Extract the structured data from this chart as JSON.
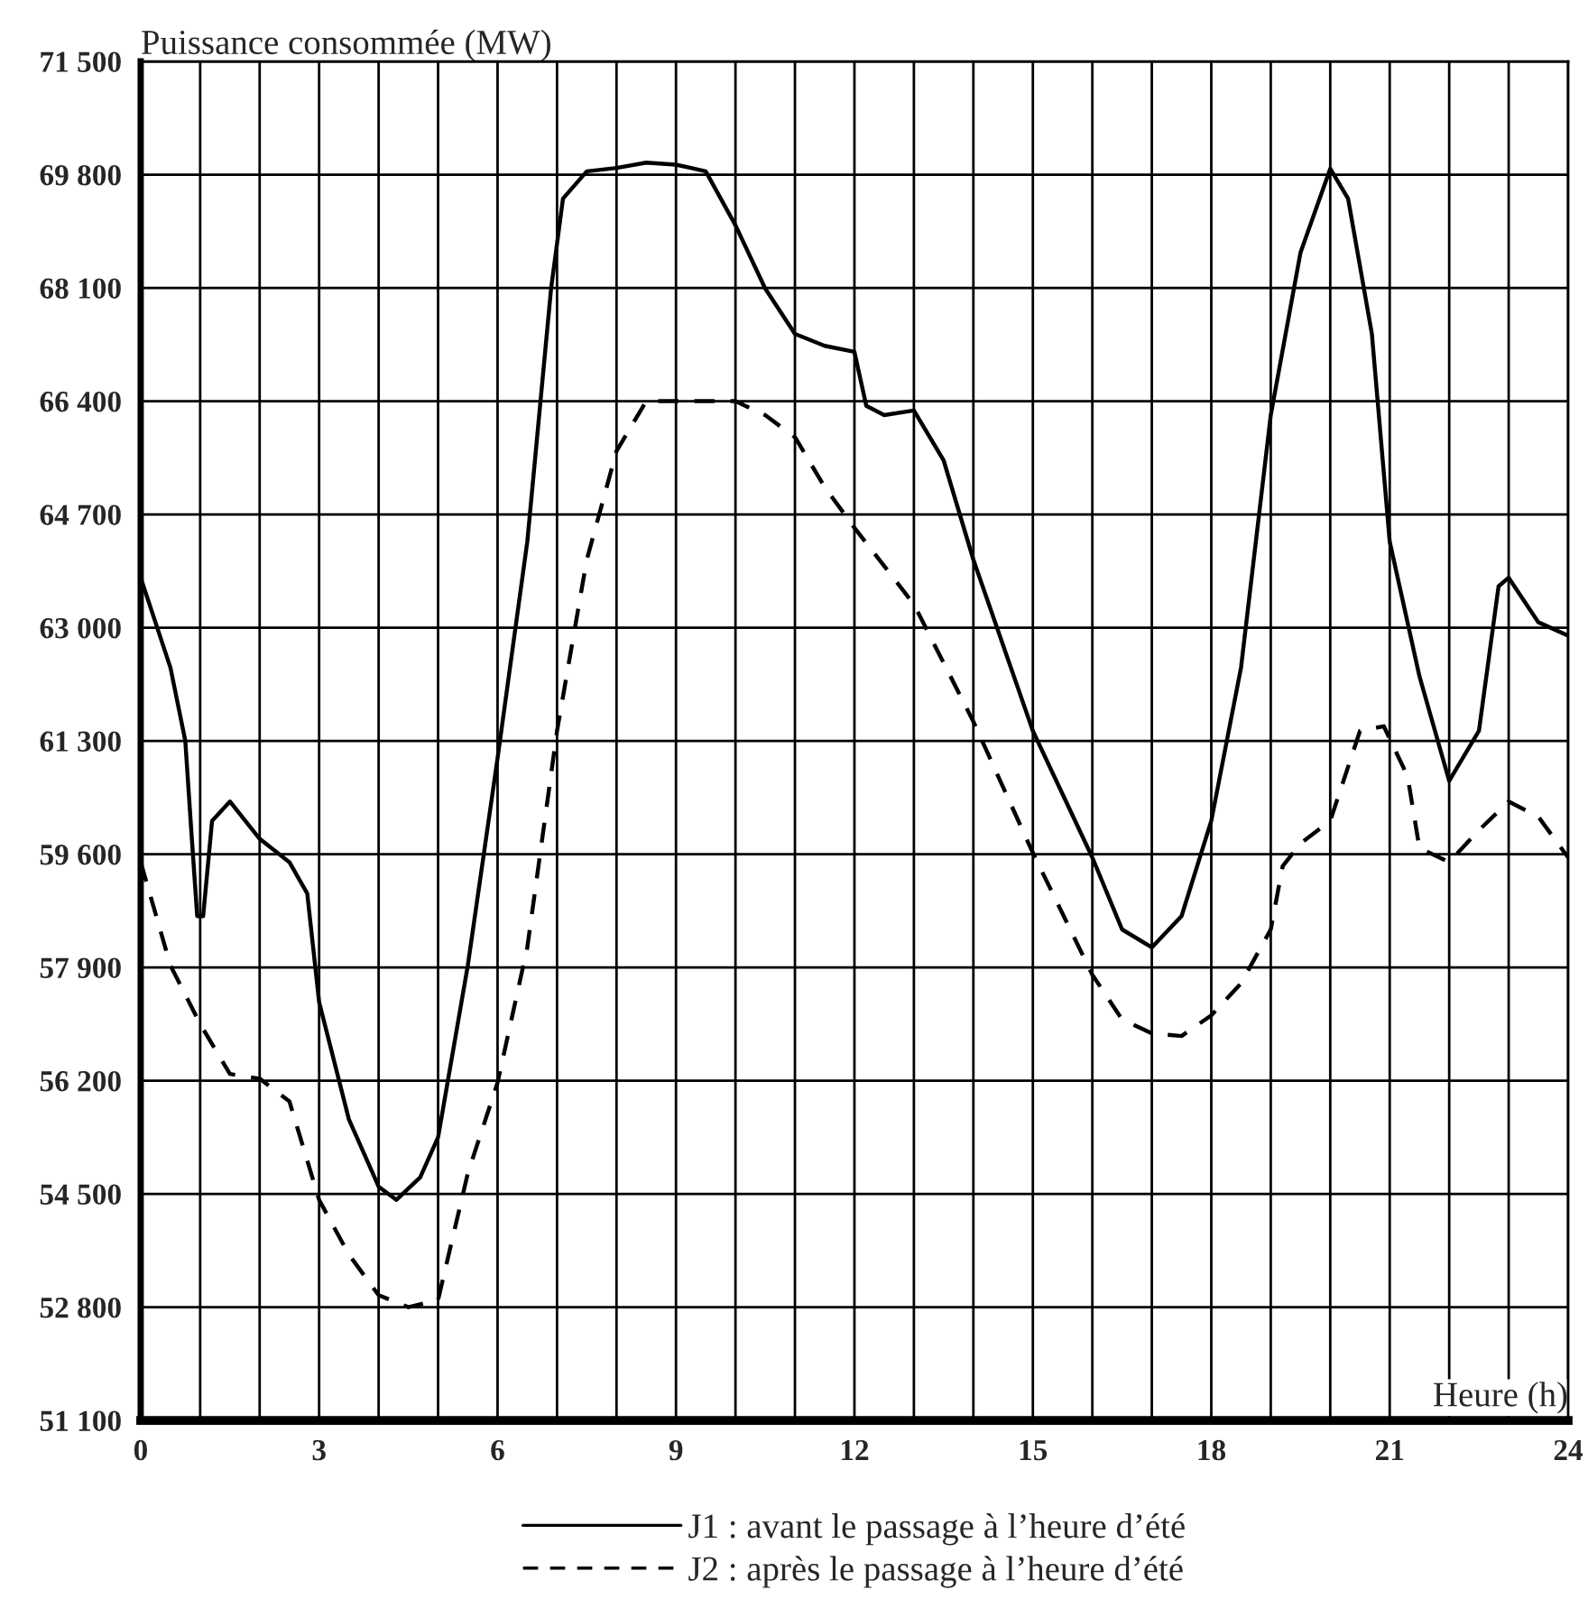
{
  "chart_data": {
    "type": "line",
    "ylabel": "Puissance consommée (MW)",
    "xlabel": "Heure (h)",
    "xlim": [
      0,
      24
    ],
    "ylim": [
      51100,
      71500
    ],
    "xticks": [
      0,
      {
        "value": 1,
        "label": null
      },
      {
        "value": 2,
        "label": null
      },
      3,
      {
        "value": 4,
        "label": null
      },
      {
        "value": 5,
        "label": null
      },
      6,
      {
        "value": 7,
        "label": null
      },
      {
        "value": 8,
        "label": null
      },
      9,
      {
        "value": 10,
        "label": null
      },
      {
        "value": 11,
        "label": null
      },
      12,
      {
        "value": 13,
        "label": null
      },
      {
        "value": 14,
        "label": null
      },
      15,
      {
        "value": 16,
        "label": null
      },
      {
        "value": 17,
        "label": null
      },
      18,
      {
        "value": 19,
        "label": null
      },
      {
        "value": 20,
        "label": null
      },
      21,
      {
        "value": 22,
        "label": null
      },
      {
        "value": 23,
        "label": null
      },
      24
    ],
    "yticks": [
      {
        "value": 51100,
        "label": "51 100"
      },
      {
        "value": 52800,
        "label": "52 800"
      },
      {
        "value": 54500,
        "label": "54 500"
      },
      {
        "value": 56200,
        "label": "56 200"
      },
      {
        "value": 57900,
        "label": "57 900"
      },
      {
        "value": 59600,
        "label": "59 600"
      },
      {
        "value": 61300,
        "label": "61 300"
      },
      {
        "value": 63000,
        "label": "63 000"
      },
      {
        "value": 64700,
        "label": "64 700"
      },
      {
        "value": 66400,
        "label": "66 400"
      },
      {
        "value": 68100,
        "label": "68 100"
      },
      {
        "value": 69800,
        "label": "69 800"
      },
      {
        "value": 71500,
        "label": "71 500"
      }
    ],
    "grid": true,
    "legend": "bottom",
    "series": [
      {
        "name": "J1 : avant le passage à l’heure d’été",
        "color": "#000000",
        "line_style": "solid",
        "x": [
          0,
          0.5,
          0.75,
          0.85,
          0.95,
          1.05,
          1.2,
          1.5,
          2,
          2.5,
          2.8,
          3,
          3.5,
          4,
          4.3,
          4.7,
          5,
          5.5,
          6,
          6.5,
          6.9,
          7.1,
          7.5,
          8,
          8.5,
          9,
          9.5,
          10,
          10.5,
          11,
          11.5,
          12,
          12.2,
          12.5,
          13,
          13.5,
          14,
          15,
          16,
          16.5,
          17,
          17.5,
          18,
          18.5,
          19,
          19.5,
          20,
          20.3,
          20.7,
          21,
          21.5,
          22,
          22.5,
          22.83,
          23,
          23.5,
          24
        ],
        "values": [
          63750,
          62400,
          61300,
          59960,
          58670,
          58670,
          60100,
          60390,
          59830,
          59480,
          59010,
          57380,
          55620,
          54610,
          54410,
          54750,
          55350,
          57930,
          61040,
          64290,
          68090,
          69440,
          69850,
          69900,
          69980,
          69950,
          69850,
          69040,
          68090,
          67410,
          67230,
          67140,
          66330,
          66190,
          66260,
          65510,
          64020,
          61450,
          59550,
          58470,
          58200,
          58670,
          60100,
          62400,
          66190,
          68630,
          69890,
          69440,
          67410,
          64290,
          62270,
          60700,
          61450,
          63620,
          63750,
          63080,
          62880
        ]
      },
      {
        "name": "J2 : après le passage à l’heure d’été",
        "color": "#000000",
        "line_style": "dashed",
        "x": [
          0,
          0.5,
          1,
          1.5,
          2,
          2.5,
          3,
          3.5,
          4,
          4.5,
          5,
          5.5,
          6,
          6.5,
          7,
          7.5,
          8,
          8.5,
          9,
          10,
          10.5,
          11,
          11.5,
          12,
          13,
          14,
          15,
          16,
          16.5,
          17,
          17.5,
          18,
          18.5,
          19,
          19.2,
          19.5,
          20,
          20.5,
          20.9,
          21.3,
          21.5,
          22,
          22.5,
          23,
          23.5,
          24
        ],
        "values": [
          59480,
          57930,
          57050,
          56300,
          56230,
          55890,
          54410,
          53590,
          52980,
          52800,
          52910,
          54810,
          56170,
          58200,
          61450,
          64020,
          65650,
          66400,
          66400,
          66400,
          66190,
          65860,
          65110,
          64500,
          63350,
          61590,
          59620,
          57790,
          57120,
          56910,
          56870,
          57180,
          57660,
          58470,
          59420,
          59760,
          60100,
          61450,
          61520,
          60770,
          59690,
          59480,
          59960,
          60390,
          60160,
          59550
        ]
      }
    ]
  }
}
